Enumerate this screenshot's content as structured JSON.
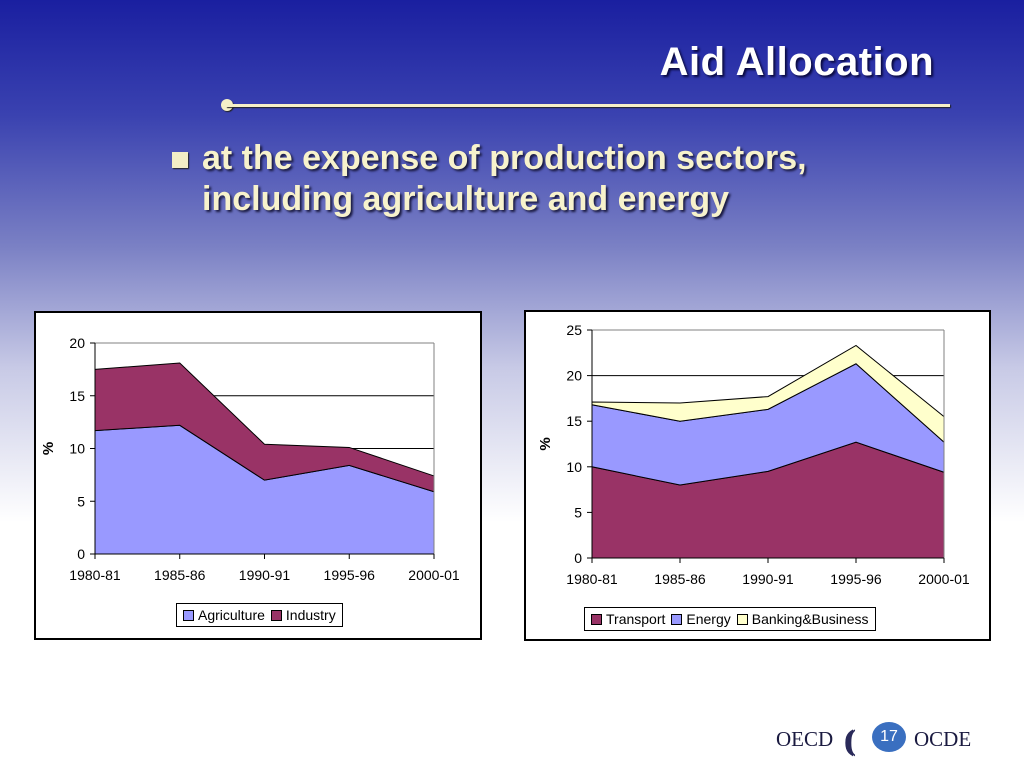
{
  "slide": {
    "title": "Aid Allocation",
    "bullet": "at the expense of production sectors, including agriculture and energy",
    "page_number": "17"
  },
  "footer": {
    "logo_left": "OECD",
    "logo_right": "OCDE"
  },
  "chart_data": [
    {
      "type": "area",
      "stacked": true,
      "categories": [
        "1980-81",
        "1985-86",
        "1990-91",
        "1995-96",
        "2000-01"
      ],
      "series": [
        {
          "name": "Agriculture",
          "color": "#9999ff",
          "values": [
            11.7,
            12.2,
            7.0,
            8.4,
            5.9
          ]
        },
        {
          "name": "Industry",
          "color": "#993366",
          "values": [
            5.8,
            5.9,
            3.4,
            1.7,
            1.5
          ]
        }
      ],
      "ylabel": "%",
      "ylim": [
        0,
        20
      ],
      "yticks": [
        0,
        5,
        10,
        15,
        20
      ],
      "grid": true,
      "legend": "bottom"
    },
    {
      "type": "area",
      "stacked": true,
      "categories": [
        "1980-81",
        "1985-86",
        "1990-91",
        "1995-96",
        "2000-01"
      ],
      "series": [
        {
          "name": "Transport",
          "color": "#993366",
          "values": [
            10.0,
            8.0,
            9.5,
            12.7,
            9.4
          ]
        },
        {
          "name": "Energy",
          "color": "#9999ff",
          "values": [
            6.8,
            7.0,
            6.8,
            8.6,
            3.3
          ]
        },
        {
          "name": "Banking&Business",
          "color": "#ffffcc",
          "values": [
            0.3,
            2.0,
            1.4,
            2.0,
            2.8
          ]
        }
      ],
      "ylabel": "%",
      "ylim": [
        0,
        25
      ],
      "yticks": [
        0,
        5,
        10,
        15,
        20,
        25
      ],
      "grid": true,
      "legend": "bottom"
    }
  ]
}
